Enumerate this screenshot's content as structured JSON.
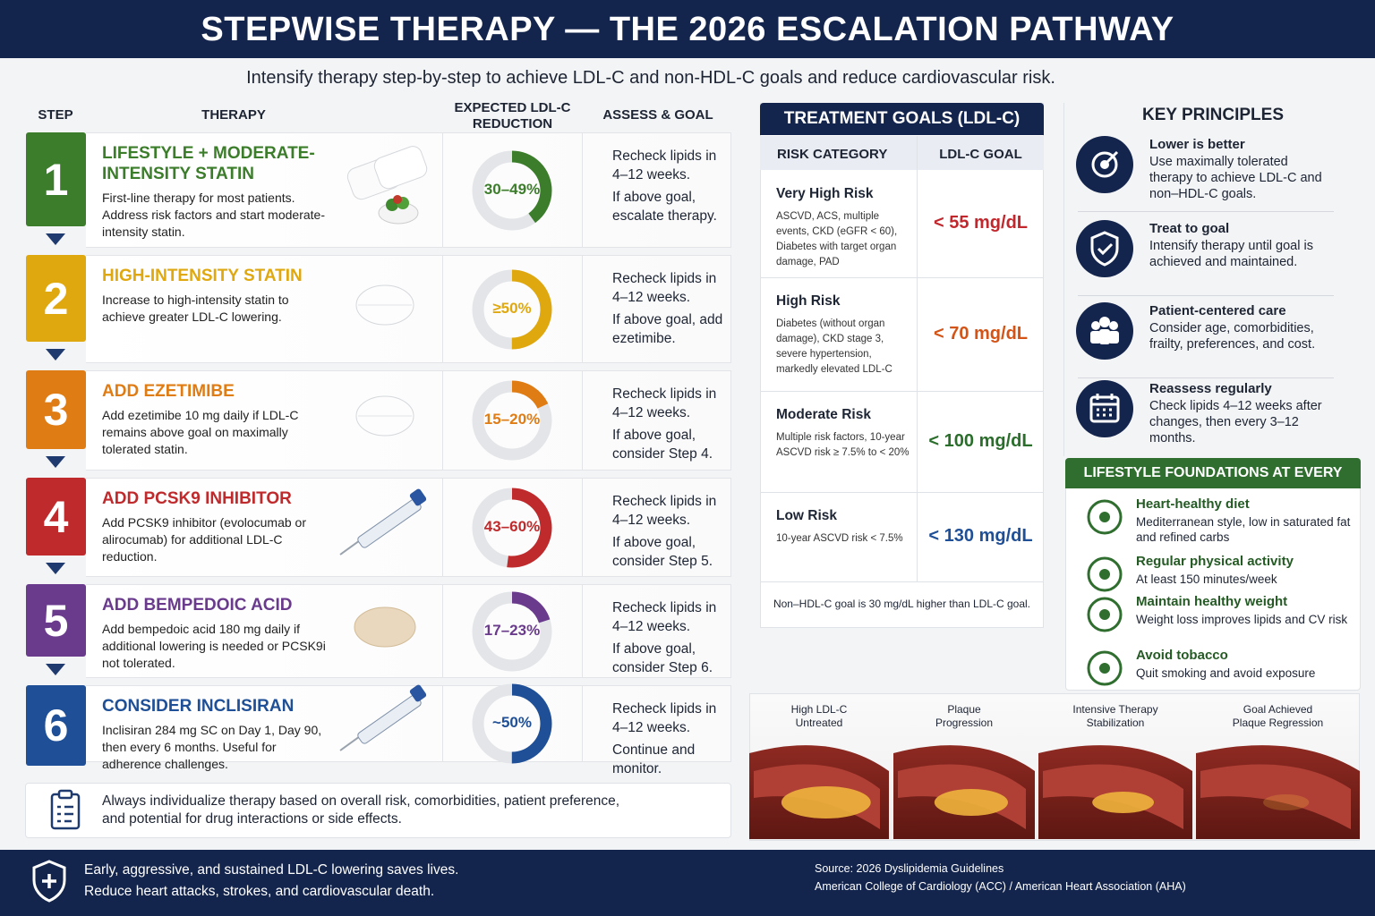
{
  "header": {
    "title": "STEPWISE THERAPY — THE 2026 ESCALATION PATHWAY",
    "subtitle": "Intensify therapy step-by-step to achieve LDL-C and non-HDL-C goals and reduce cardiovascular risk."
  },
  "steps_table": {
    "columns": [
      "STEP",
      "THERAPY",
      "EXPECTED LDL-C REDUCTION",
      "ASSESS & GOAL"
    ],
    "steps": [
      {
        "number": 1,
        "title": "LIFESTYLE + MODERATE-INTENSITY STATIN",
        "description": "First-line therapy for most patients. Address risk factors and start moderate-intensity statin.",
        "reduction": "30–49%",
        "assess": [
          "Recheck lipids in 4–12 weeks.",
          "If above goal, escalate therapy."
        ]
      },
      {
        "number": 2,
        "title": "HIGH-INTENSITY STATIN",
        "description": "Increase to high-intensity statin to achieve greater LDL-C lowering.",
        "reduction": "≥50%",
        "assess": [
          "Recheck lipids in 4–12 weeks.",
          "If above goal, add ezetimibe."
        ]
      },
      {
        "number": 3,
        "title": "ADD EZETIMIBE",
        "description": "Add ezetimibe 10 mg daily if LDL-C remains above goal on maximally tolerated statin.",
        "reduction": "15–20%",
        "assess": [
          "Recheck lipids in 4–12 weeks.",
          "If above goal, consider Step 4."
        ]
      },
      {
        "number": 4,
        "title": "ADD PCSK9 INHIBITOR",
        "description": "Add PCSK9 inhibitor (evolocumab or alirocumab) for additional LDL-C reduction.",
        "reduction": "43–60%",
        "assess": [
          "Recheck lipids in 4–12 weeks.",
          "If above goal, consider Step 5."
        ]
      },
      {
        "number": 5,
        "title": "ADD BEMPEDOIC ACID",
        "description": "Add bempedoic acid 180 mg daily if additional lowering is needed or PCSK9i not tolerated.",
        "reduction": "17–23%",
        "assess": [
          "Recheck lipids in 4–12 weeks.",
          "If above goal, consider Step 6."
        ]
      },
      {
        "number": 6,
        "title": "CONSIDER INCLISIRAN",
        "description": "Inclisiran 284 mg SC on Day 1, Day 90, then every 6 months. Useful for adherence challenges.",
        "reduction": "~50%",
        "assess": [
          "Recheck lipids in 4–12 weeks.",
          "Continue and monitor."
        ]
      }
    ],
    "note": "Always individualize therapy based on overall risk, comorbidities, patient preference, and potential for drug interactions or side effects."
  },
  "goals": {
    "title": "TREATMENT GOALS (LDL-C)",
    "columns": [
      "RISK CATEGORY",
      "LDL-C GOAL"
    ],
    "rows": [
      {
        "category": "Very High Risk",
        "criteria": "ASCVD, ACS, multiple events, CKD (eGFR < 60), Diabetes with target organ damage, PAD",
        "goal": "< 55 mg/dL"
      },
      {
        "category": "High Risk",
        "criteria": "Diabetes (without organ damage), CKD stage 3, severe hypertension, markedly elevated LDL-C",
        "goal": "< 70 mg/dL"
      },
      {
        "category": "Moderate Risk",
        "criteria": "Multiple risk factors, 10-year ASCVD risk ≥ 7.5% to < 20%",
        "goal": "< 100 mg/dL"
      },
      {
        "category": "Low Risk",
        "criteria": "10-year ASCVD risk < 7.5%",
        "goal": "< 130 mg/dL"
      }
    ],
    "note": "Non–HDL-C goal is 30 mg/dL higher than LDL-C goal."
  },
  "principles": {
    "title": "KEY PRINCIPLES",
    "items": [
      {
        "title": "Lower is better",
        "text": "Use maximally tolerated therapy to achieve LDL-C and non–HDL-C goals."
      },
      {
        "title": "Treat to goal",
        "text": "Intensify therapy until goal is achieved and maintained."
      },
      {
        "title": "Patient-centered care",
        "text": "Consider age, comorbidities, frailty, preferences, and cost."
      },
      {
        "title": "Reassess regularly",
        "text": "Check lipids 4–12 weeks after changes, then every 3–12 months."
      }
    ]
  },
  "lifestyle": {
    "title": "LIFESTYLE FOUNDATIONS AT EVERY STEP",
    "items": [
      {
        "title": "Heart-healthy diet",
        "text": "Mediterranean style, low in saturated fat and refined carbs"
      },
      {
        "title": "Regular physical activity",
        "text": "At least 150 minutes/week"
      },
      {
        "title": "Maintain healthy weight",
        "text": "Weight loss improves lipids and CV risk"
      },
      {
        "title": "Avoid tobacco",
        "text": "Quit smoking and avoid exposure"
      }
    ]
  },
  "stages": [
    [
      "High LDL-C",
      "Untreated"
    ],
    [
      "Plaque",
      "Progression"
    ],
    [
      "Intensive Therapy",
      "Stabilization"
    ],
    [
      "Goal Achieved",
      "Plaque Regression"
    ]
  ],
  "footer": {
    "message": [
      "Early, aggressive, and sustained LDL-C lowering saves lives.",
      "Reduce heart attacks, strokes, and cardiovascular death."
    ],
    "source": [
      "Source: 2026 Dyslipidemia Guidelines",
      "American College of Cardiology (ACC) / American Heart Association (AHA)"
    ]
  }
}
